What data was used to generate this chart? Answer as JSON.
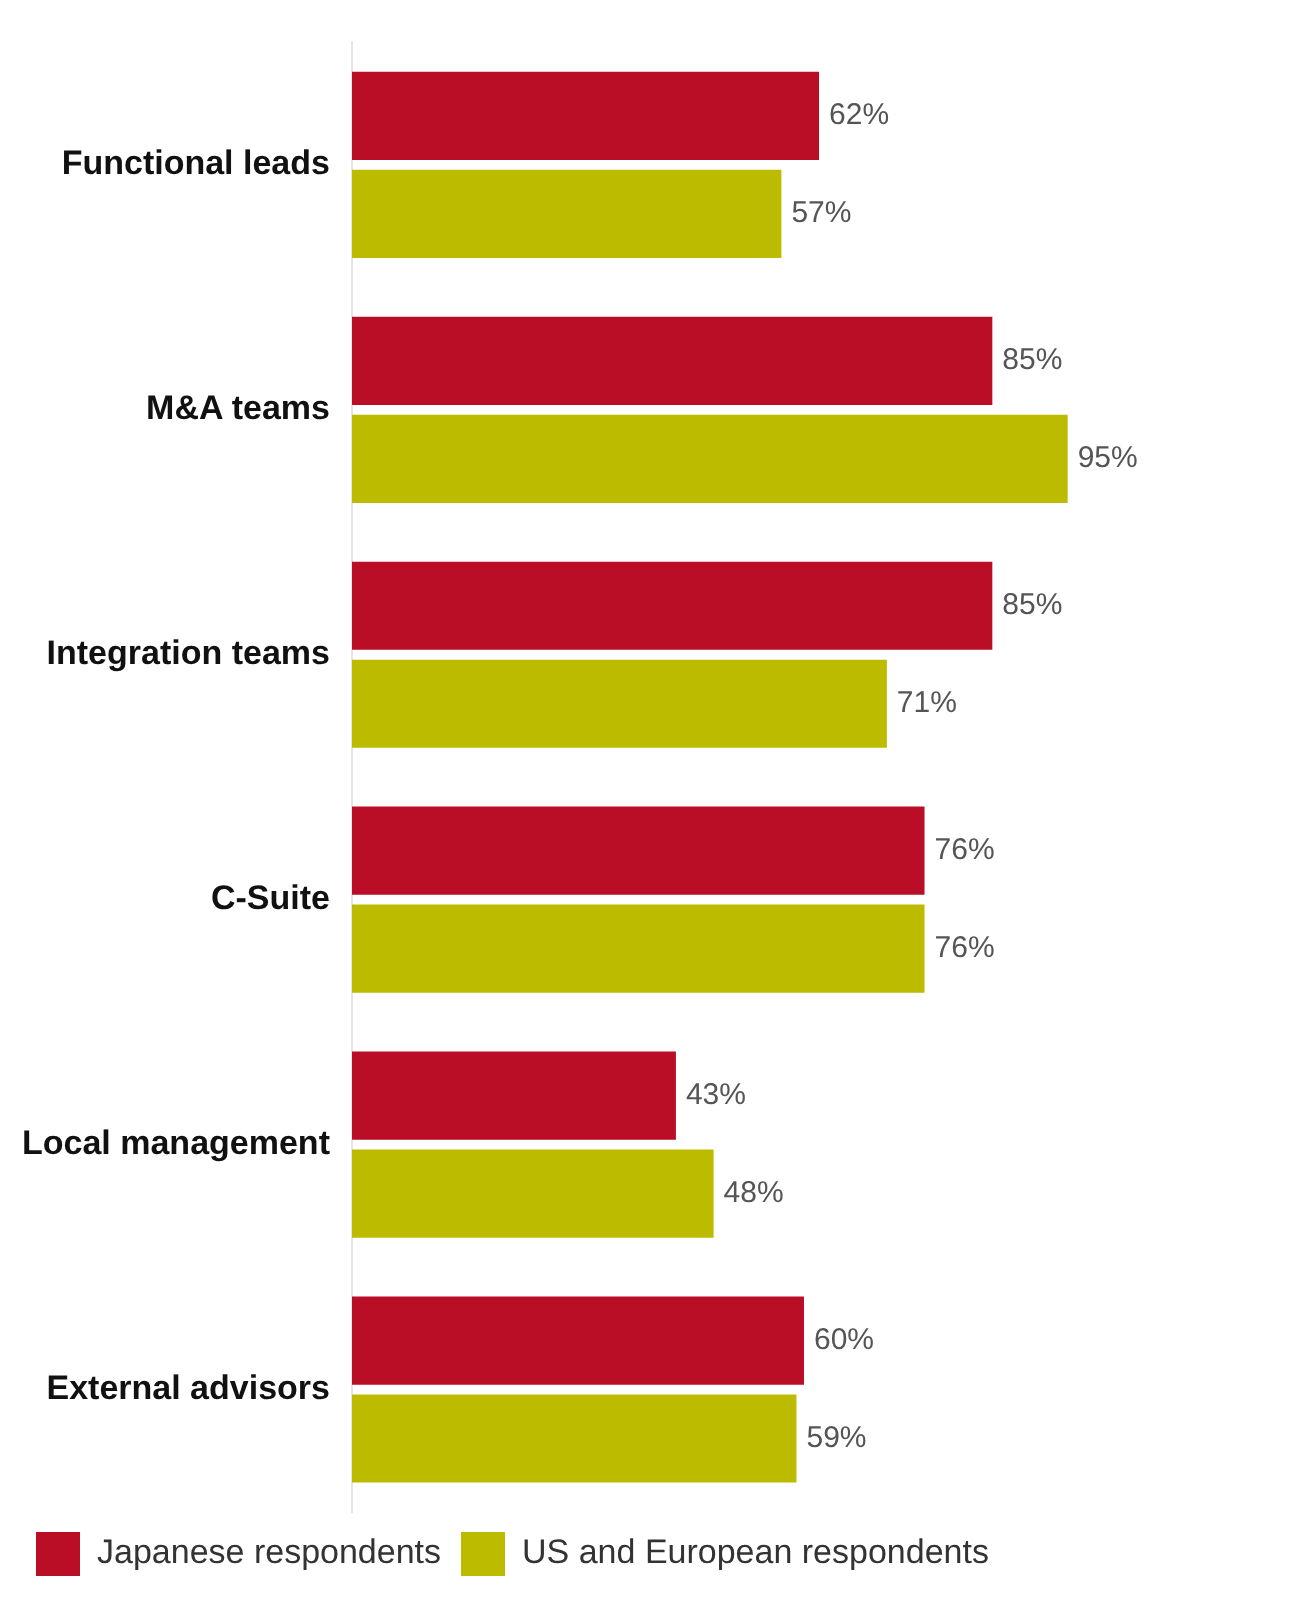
{
  "chart_data": {
    "type": "bar",
    "orientation": "horizontal",
    "categories": [
      "Functional leads",
      "M&A teams",
      "Integration teams",
      "C-Suite",
      "Local management",
      "External advisors"
    ],
    "series": [
      {
        "name": "Japanese respondents",
        "color": "#b90e25",
        "values": [
          62,
          85,
          85,
          76,
          43,
          60
        ],
        "value_labels": [
          "62%",
          "85%",
          "85%",
          "76%",
          "43%",
          "60%"
        ]
      },
      {
        "name": "US and European respondents",
        "color": "#bdbb00",
        "values": [
          57,
          95,
          71,
          76,
          48,
          59
        ],
        "value_labels": [
          "57%",
          "95%",
          "71%",
          "76%",
          "48%",
          "59%"
        ]
      }
    ],
    "tick_labels": "y",
    "grid": false,
    "legend": "bottom left"
  }
}
